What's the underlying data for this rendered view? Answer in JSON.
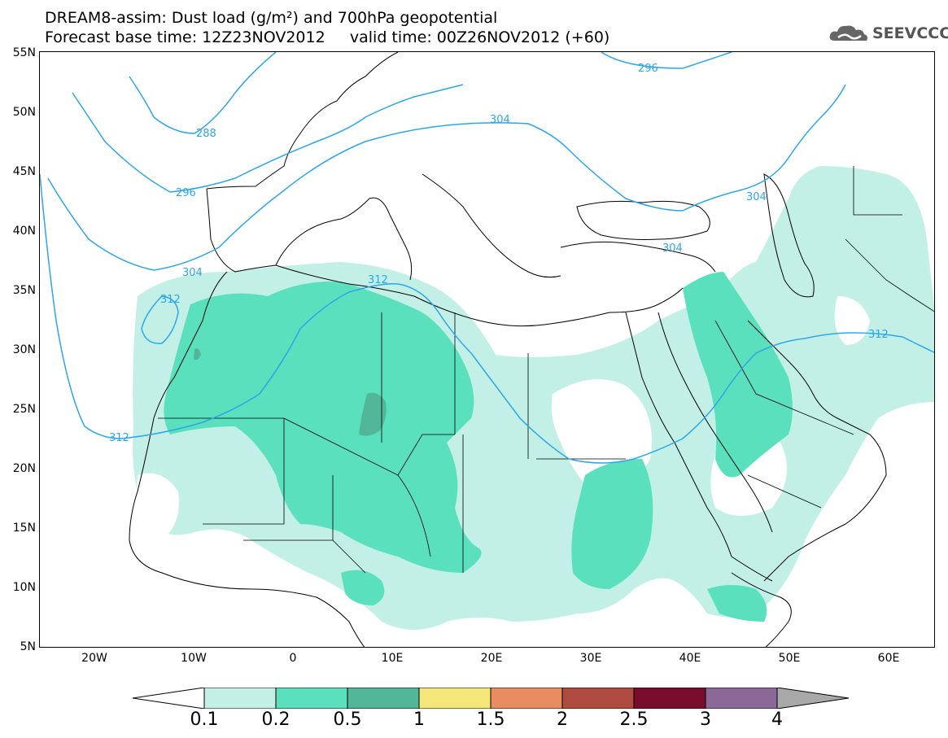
{
  "header": {
    "title_line1": "DREAM8-assim: Dust load (g/m²) and 700hPa geopotential",
    "title_line2": "Forecast base time: 12Z23NOV2012     valid time: 00Z26NOV2012 (+60)",
    "logo_text": "SEEVCCC"
  },
  "map": {
    "lat_labels": [
      "55N",
      "50N",
      "45N",
      "40N",
      "35N",
      "30N",
      "25N",
      "20N",
      "15N",
      "10N",
      "5N"
    ],
    "lon_labels": [
      "20W",
      "10W",
      "0",
      "10E",
      "20E",
      "30E",
      "40E",
      "50E",
      "60E"
    ],
    "contour_color": "#2da5ea",
    "contour_labels": [
      "296",
      "288",
      "304",
      "296",
      "304",
      "304",
      "304",
      "312",
      "312",
      "312",
      "312"
    ],
    "dust_colors": {
      "level_0_1": "#c2f0e6",
      "level_0_2": "#5ae0bd",
      "level_0_5": "#52b798"
    }
  },
  "colorbar": {
    "labels": [
      "0.1",
      "0.2",
      "0.5",
      "1",
      "1.5",
      "2",
      "2.5",
      "3",
      "4"
    ],
    "colors": [
      "#c2f0e6",
      "#5ae0bd",
      "#52b798",
      "#f5e67a",
      "#e88c62",
      "#b04b3f",
      "#7a0c2e",
      "#8c6899"
    ],
    "under_color": "#ffffff",
    "over_color": "#a9a9a9"
  }
}
